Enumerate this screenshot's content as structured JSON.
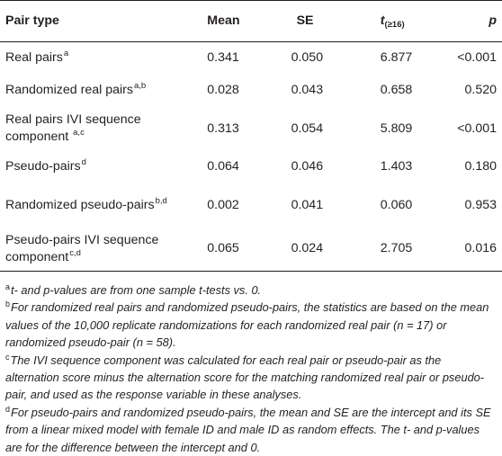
{
  "table": {
    "headers": {
      "pair_type": "Pair type",
      "mean": "Mean",
      "se": "SE",
      "t": "t",
      "t_sub": "(≥16)",
      "p": "p"
    },
    "rows": [
      {
        "pair": "Real pairs",
        "sup": "a",
        "mean": "0.341",
        "se": "0.050",
        "t": "6.877",
        "p": "<0.001"
      },
      {
        "pair": "Randomized real pairs",
        "sup": "a,b",
        "mean": "0.028",
        "se": "0.043",
        "t": "0.658",
        "p": "0.520"
      },
      {
        "pair": "Real pairs IVI sequence component ",
        "sup": "a,c",
        "mean": "0.313",
        "se": "0.054",
        "t": "5.809",
        "p": "<0.001"
      },
      {
        "pair": "Pseudo-pairs",
        "sup": "d",
        "mean": "0.064",
        "se": "0.046",
        "t": "1.403",
        "p": "0.180"
      },
      {
        "pair": "Randomized pseudo-pairs",
        "sup": "b,d",
        "mean": "0.002",
        "se": "0.041",
        "t": "0.060",
        "p": "0.953"
      },
      {
        "pair": "Pseudo-pairs IVI sequence component",
        "sup": "c,d",
        "mean": "0.065",
        "se": "0.024",
        "t": "2.705",
        "p": "0.016"
      }
    ]
  },
  "notes": [
    {
      "mark": "a",
      "text": "t- and p-values are from one sample t-tests vs. 0."
    },
    {
      "mark": "b",
      "text": "For randomized real pairs and randomized pseudo-pairs, the statistics are based on the mean values of the 10,000 replicate randomizations for each randomized real pair (n = 17) or randomized pseudo-pair (n = 58)."
    },
    {
      "mark": "c",
      "text": "The IVI sequence component was calculated for each real pair or pseudo-pair as the alternation score minus the alternation score for the matching randomized real pair or pseudo-pair, and used as the response variable in these analyses."
    },
    {
      "mark": "d",
      "text": "For pseudo-pairs and randomized pseudo-pairs, the mean and SE are the intercept and its SE from a linear mixed model with female ID and male ID as random effects. The t- and p-values are for the difference between the intercept and 0."
    }
  ]
}
